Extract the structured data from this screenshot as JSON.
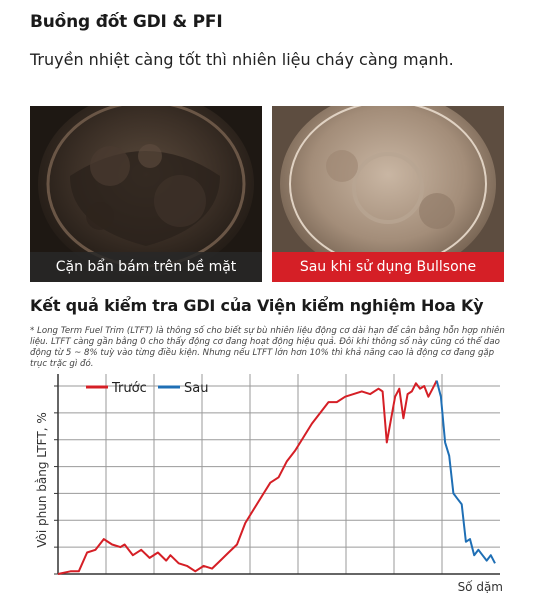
{
  "header": {
    "title": "Buồng đốt GDI & PFI",
    "subtitle": "Truyền nhiệt càng tốt thì nhiên liệu cháy càng mạnh."
  },
  "photos": {
    "before_caption": "Cặn bẩn bám trên bề mặt",
    "after_caption": "Sau khi sử dụng Bullsone"
  },
  "results": {
    "title": "Kết quả kiểm tra GDI của Viện kiểm nghiệm Hoa Kỳ",
    "footnote": "* Long Term Fuel Trim (LTFT) là thông số cho biết sự bù nhiên liệu động cơ dài hạn để cân bằng hỗn hợp nhiên liệu. LTFT càng gần bằng 0 cho thấy động cơ đang hoạt động hiệu quả. Đôi khi thông số này cũng có thể dao động từ 5 ~ 8% tuỳ vào từng điều kiện. Nhưng nếu LTFT lớn hơn 10% thì khả năng cao là động cơ đang gặp trục trặc gì đó."
  },
  "colors": {
    "brand_red": "#d51f26",
    "before_line": "#d51f26",
    "after_line": "#1f6fb5"
  },
  "chart_data": {
    "type": "line",
    "title": "",
    "xlabel": "Số dặm",
    "ylabel": "Vòi phun bằng LTFT, %",
    "grid": true,
    "legend_position": "top-left",
    "ylim": [
      0,
      7
    ],
    "xlim": [
      0,
      100
    ],
    "series": [
      {
        "name": "Trước",
        "color": "#d51f26",
        "x": [
          0,
          3,
          5,
          7,
          9,
          11,
          13,
          15,
          16,
          18,
          20,
          22,
          24,
          26,
          27,
          29,
          31,
          33,
          35,
          37,
          39,
          41,
          43,
          45,
          47,
          49,
          51,
          53,
          55,
          57,
          59,
          61,
          63,
          65,
          67,
          69,
          71,
          73,
          75,
          77,
          78,
          79,
          81,
          82,
          83,
          84,
          85,
          86,
          87,
          88,
          89,
          90,
          91
        ],
        "y": [
          0.0,
          0.1,
          0.1,
          0.8,
          0.9,
          1.3,
          1.1,
          1.0,
          1.1,
          0.7,
          0.9,
          0.6,
          0.8,
          0.5,
          0.7,
          0.4,
          0.3,
          0.1,
          0.3,
          0.2,
          0.5,
          0.8,
          1.1,
          1.9,
          2.4,
          2.9,
          3.4,
          3.6,
          4.2,
          4.6,
          5.1,
          5.6,
          6.0,
          6.4,
          6.4,
          6.6,
          6.7,
          6.8,
          6.7,
          6.9,
          6.8,
          4.9,
          6.6,
          6.9,
          5.8,
          6.7,
          6.8,
          7.1,
          6.9,
          7.0,
          6.6,
          6.9,
          7.2
        ]
      },
      {
        "name": "Sau",
        "color": "#1f6fb5",
        "x": [
          91,
          92,
          93,
          94,
          95,
          96,
          97,
          98,
          99,
          100,
          101,
          102,
          103,
          104,
          105
        ],
        "y": [
          7.2,
          6.6,
          4.9,
          4.4,
          3.0,
          2.8,
          2.6,
          1.2,
          1.3,
          0.7,
          0.9,
          0.7,
          0.5,
          0.7,
          0.4
        ]
      }
    ]
  }
}
